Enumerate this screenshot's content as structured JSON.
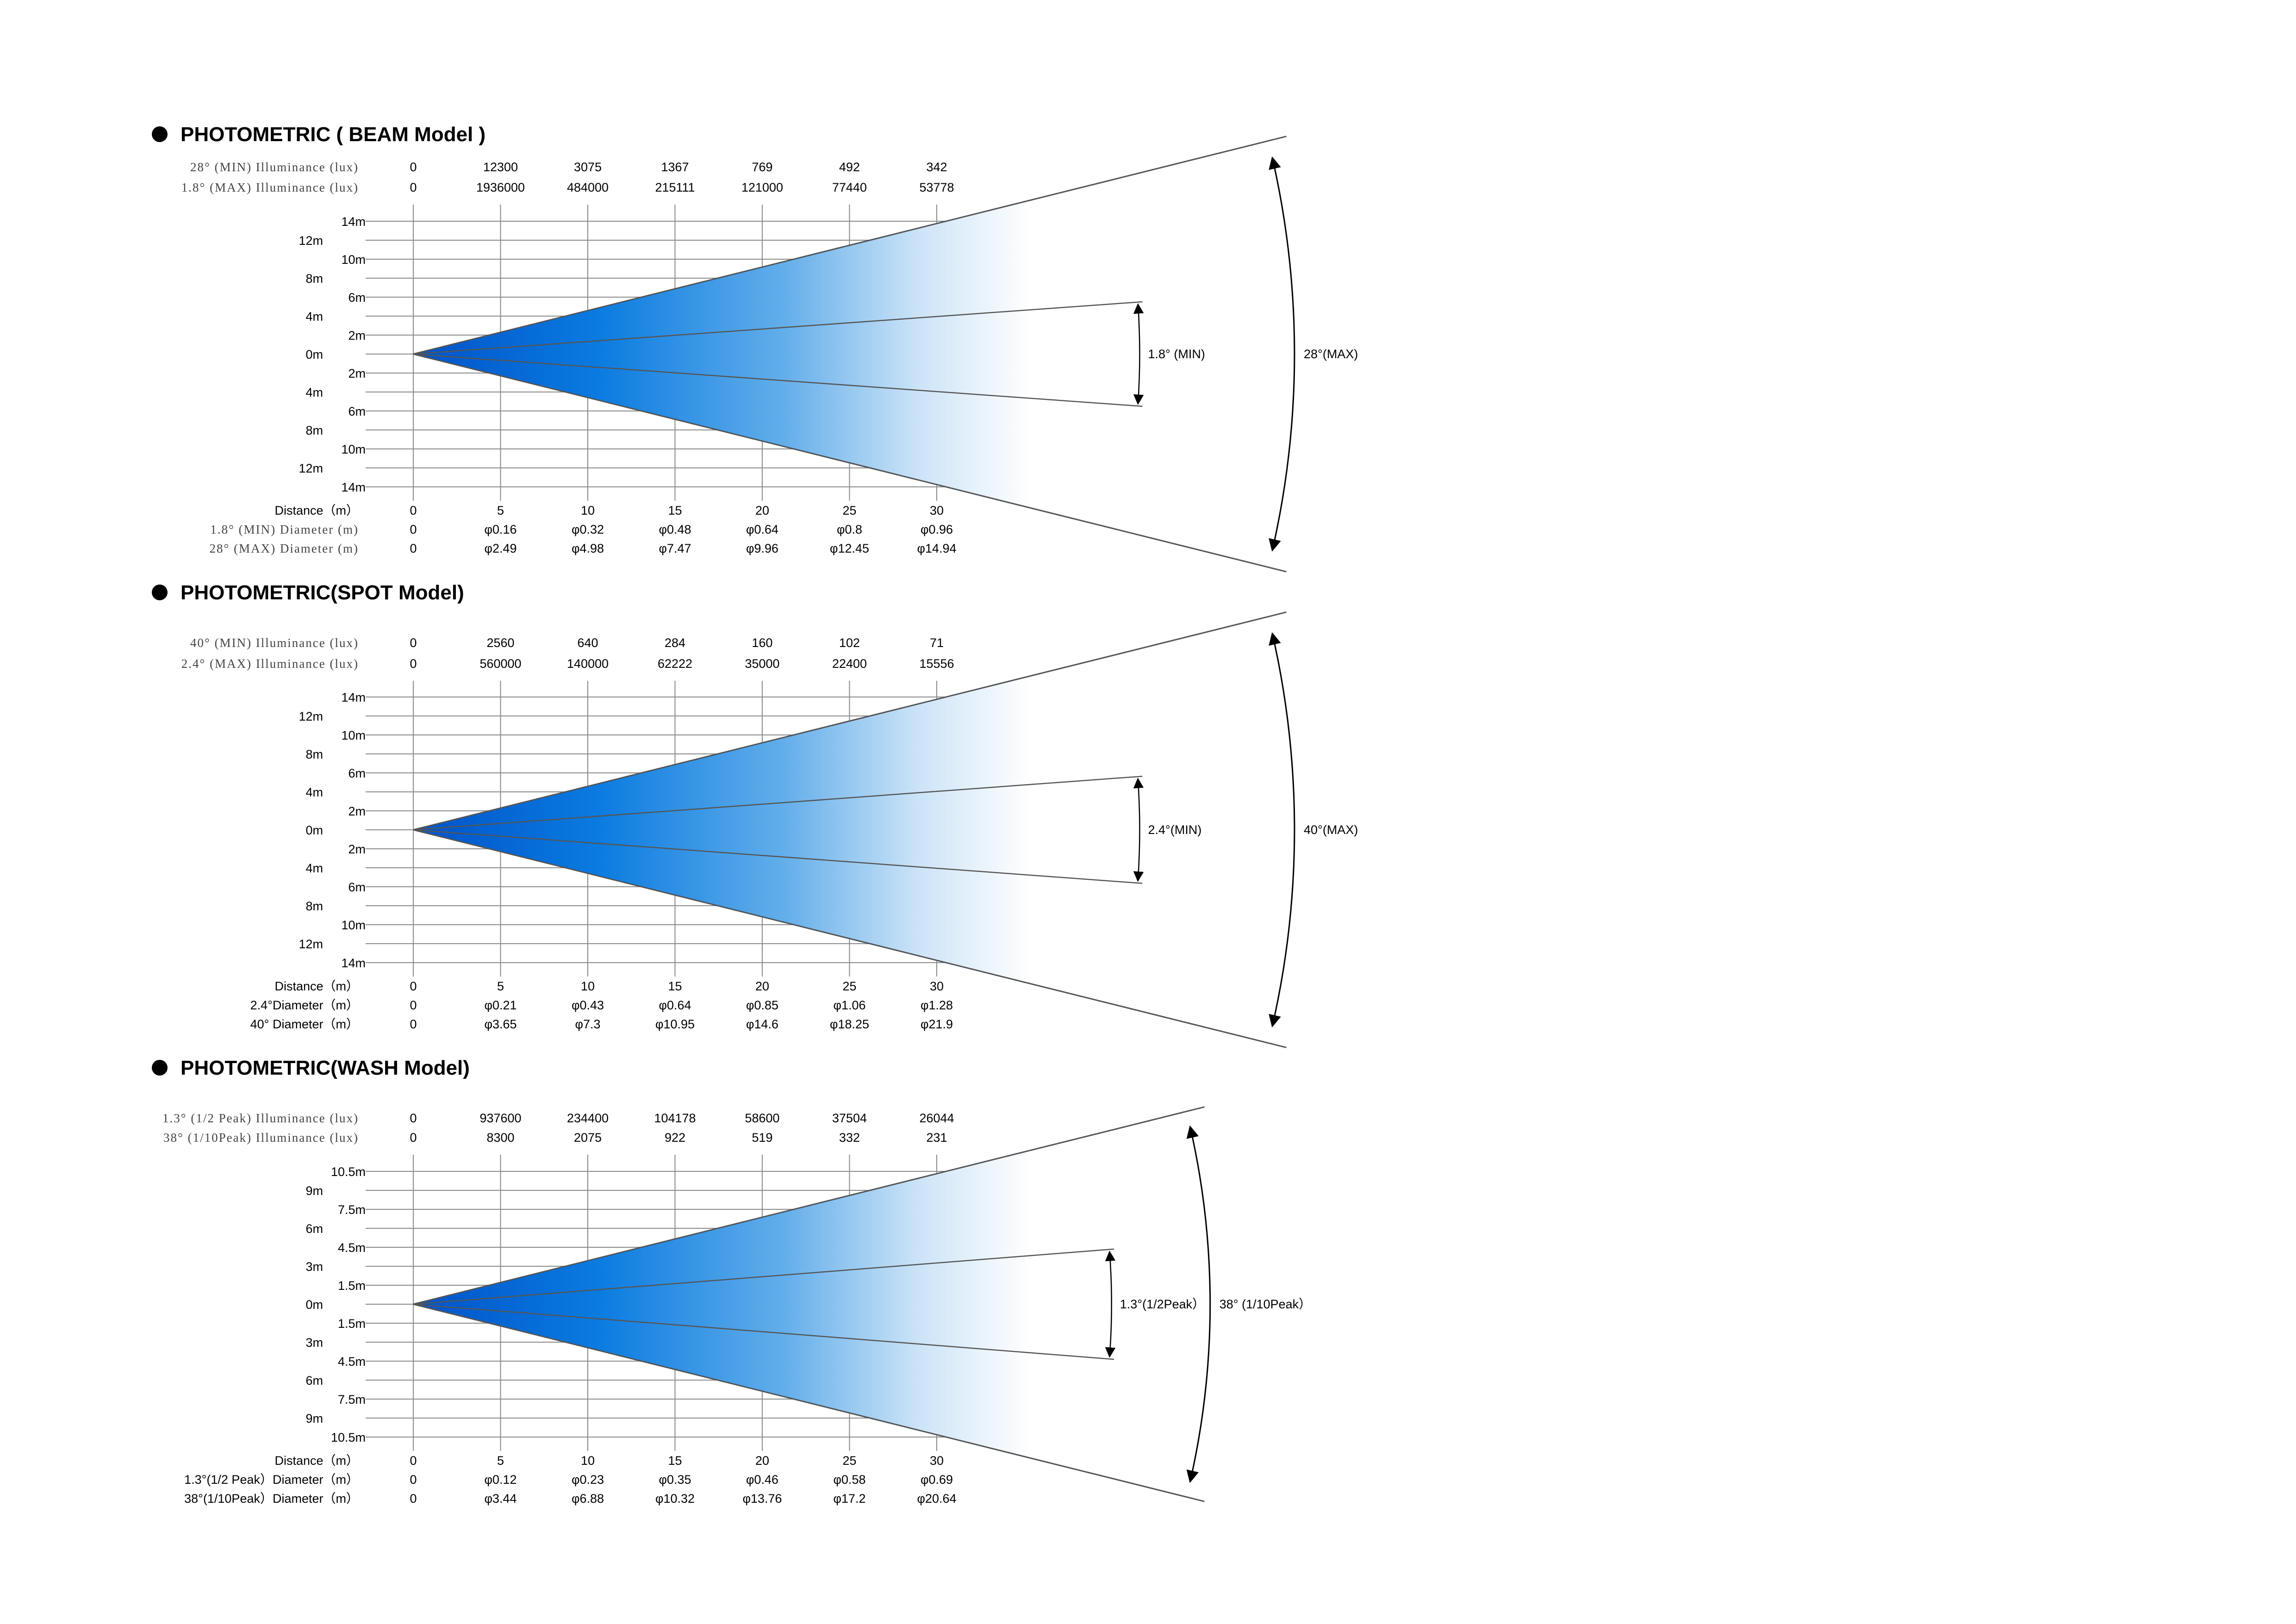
{
  "chart_data": [
    {
      "type": "beam-angle",
      "title": "PHOTOMETRIC ( BEAM  Model )",
      "illum": [
        {
          "label": "28°  (MIN) Illuminance (lux)",
          "values": [
            "0",
            "12300",
            "3075",
            "1367",
            "769",
            "492",
            "342"
          ]
        },
        {
          "label": "1.8° (MAX) Illuminance (lux)",
          "values": [
            "0",
            "1936000",
            "484000",
            "215111",
            "121000",
            "77440",
            "53778"
          ]
        }
      ],
      "y_labels_outer": [
        "12m",
        "8m",
        "4m",
        "0m",
        "4m",
        "8m",
        "12m"
      ],
      "y_labels_inner": [
        "14m",
        "10m",
        "6m",
        "2m",
        "2m",
        "6m",
        "10m",
        "14m"
      ],
      "dist_label": "Distance（m）",
      "distances": [
        "0",
        "5",
        "10",
        "15",
        "20",
        "25",
        "30"
      ],
      "diameters": [
        {
          "label": "1.8° (MIN) Diameter (m)",
          "values": [
            "0",
            "φ0.16",
            "φ0.32",
            "φ0.48",
            "φ0.64",
            "φ0.8",
            "φ0.96"
          ]
        },
        {
          "label": "28° (MAX) Diameter (m)",
          "values": [
            "0",
            "φ2.49",
            "φ4.98",
            "φ7.47",
            "φ9.96",
            "φ12.45",
            "φ14.94"
          ]
        }
      ],
      "inner_angle_label": "1.8° (MIN)",
      "outer_angle_label": "28°(MAX)",
      "outer_half_deg": 14,
      "inner_half_deg": 4.1,
      "outer_line_len": 1.6,
      "inner_line_len": 1.3
    },
    {
      "type": "beam-angle",
      "title": "PHOTOMETRIC(SPOT  Model)",
      "illum": [
        {
          "label": "40° (MIN) Illuminance (lux)",
          "values": [
            "0",
            "2560",
            "640",
            "284",
            "160",
            "102",
            "71"
          ]
        },
        {
          "label": "2.4° (MAX) Illuminance (lux)",
          "values": [
            "0",
            "560000",
            "140000",
            "62222",
            "35000",
            "22400",
            "15556"
          ]
        }
      ],
      "y_labels_outer": [
        "12m",
        "8m",
        "4m",
        "0m",
        "4m",
        "8m",
        "12m"
      ],
      "y_labels_inner": [
        "14m",
        "10m",
        "6m",
        "2m",
        "2m",
        "6m",
        "10m",
        "14m"
      ],
      "dist_label": "Distance（m）",
      "distances": [
        "0",
        "5",
        "10",
        "15",
        "20",
        "25",
        "30"
      ],
      "diameters": [
        {
          "label": "2.4°Diameter（m）",
          "values": [
            "0",
            "φ0.21",
            "φ0.43",
            "φ0.64",
            "φ0.85",
            "φ1.06",
            "φ1.28"
          ]
        },
        {
          "label": "40° Diameter（m）",
          "values": [
            "0",
            "φ3.65",
            "φ7.3",
            "φ10.95",
            "φ14.6",
            "φ18.25",
            "φ21.9"
          ]
        }
      ],
      "inner_angle_label": "2.4°(MIN)",
      "outer_angle_label": "40°(MAX)",
      "outer_half_deg": 14,
      "inner_half_deg": 4.2,
      "outer_line_len": 1.6,
      "inner_line_len": 1.3
    },
    {
      "type": "beam-angle",
      "title": "PHOTOMETRIC(WASH  Model)",
      "illum": [
        {
          "label": "1.3° (1/2 Peak) Illuminance (lux)",
          "values": [
            "0",
            "937600",
            "234400",
            "104178",
            "58600",
            "37504",
            "26044"
          ]
        },
        {
          "label": "38° (1/10Peak) Illuminance (lux)",
          "values": [
            "0",
            "8300",
            "2075",
            "922",
            "519",
            "332",
            "231"
          ]
        }
      ],
      "y_labels_outer": [
        "9m",
        "6m",
        "3m",
        "0m",
        "3m",
        "6m",
        "9m"
      ],
      "y_labels_inner": [
        "10.5m",
        "7.5m",
        "4.5m",
        "1.5m",
        "1.5m",
        "4.5m",
        "7.5m",
        "10.5m"
      ],
      "dist_label": "Distance（m）",
      "distances": [
        "0",
        "5",
        "10",
        "15",
        "20",
        "25",
        "30"
      ],
      "diameters": [
        {
          "label": "1.3°(1/2 Peak）Diameter（m）",
          "values": [
            "0",
            "φ0.12",
            "φ0.23",
            "φ0.35",
            "φ0.46",
            "φ0.58",
            "φ0.69"
          ]
        },
        {
          "label": "38°(1/10Peak）Diameter（m）",
          "values": [
            "0",
            "φ3.44",
            "φ6.88",
            "φ10.32",
            "φ13.76",
            "φ17.2",
            "φ20.64"
          ]
        }
      ],
      "inner_angle_label": "1.3°(1/2Peak）",
      "outer_angle_label": "38° (1/10Peak）",
      "outer_half_deg": 14,
      "inner_half_deg": 4.5,
      "outer_line_len": 1.45,
      "inner_line_len": 1.25
    }
  ],
  "colors": {
    "beam_core": "#0063d1",
    "beam_edge": "#ffffff",
    "grid": "#8a8a8a",
    "line": "#555555"
  }
}
